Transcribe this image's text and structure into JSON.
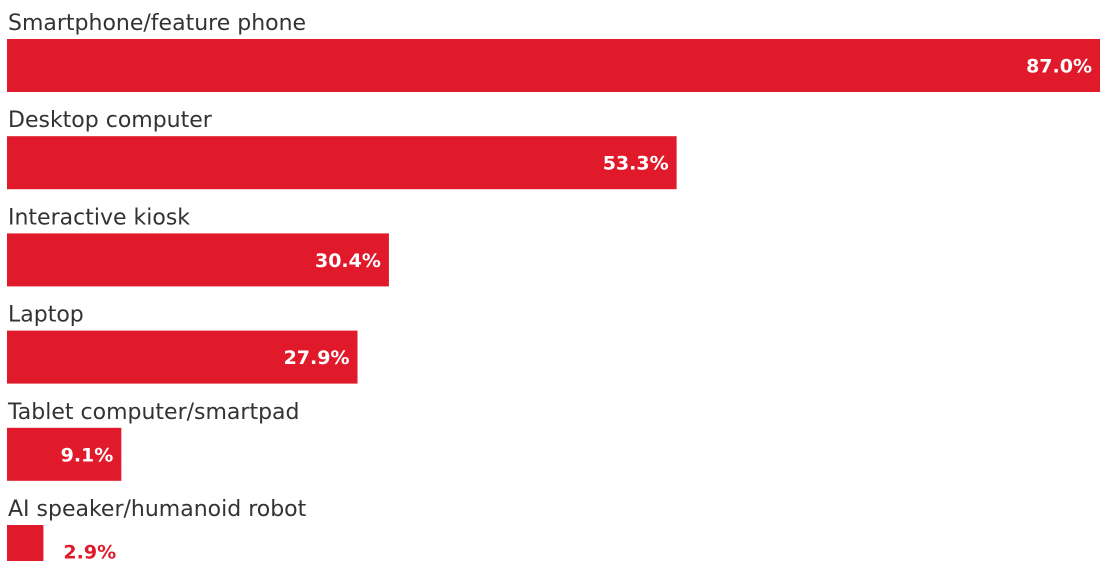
{
  "chart_data": {
    "type": "bar",
    "orientation": "horizontal",
    "categories": [
      "Smartphone/feature phone",
      "Desktop computer",
      "Interactive kiosk",
      "Laptop",
      "Tablet computer/smartpad",
      "AI speaker/humanoid robot"
    ],
    "values": [
      87.0,
      53.3,
      30.4,
      27.9,
      9.1,
      2.9
    ],
    "value_labels": [
      "87.0%",
      "53.3%",
      "30.4%",
      "27.9%",
      "9.1%",
      "2.9%"
    ],
    "unit": "%",
    "xlim": [
      0,
      87.0
    ],
    "grid": false,
    "legend": "none",
    "title": "",
    "xlabel": "",
    "ylabel": "",
    "colors": {
      "bar": "#E01A2B",
      "label_inside": "#FFFFFF",
      "label_outside": "#E01A2B",
      "category_text": "#333333"
    }
  }
}
